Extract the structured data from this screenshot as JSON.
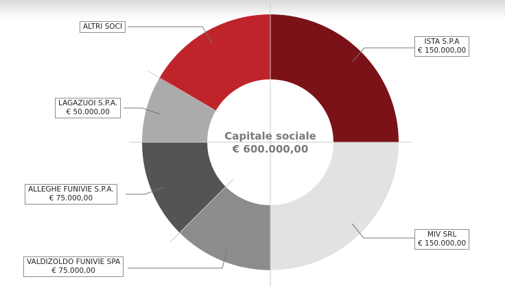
{
  "chart_data": {
    "type": "pie",
    "donut": true,
    "center_label": [
      "Capitale sociale",
      "€ 600.000,00"
    ],
    "slices": [
      {
        "name": "ISTA S.P.A",
        "value_label": "€ 150.000,00",
        "value": 150000,
        "color": "#7a1218"
      },
      {
        "name": "MIV SRL",
        "value_label": "€ 150.000,00",
        "value": 150000,
        "color": "#e2e2e2"
      },
      {
        "name": "VALDIZOLDO FUNIVIE SPA",
        "value_label": "€ 75.000,00",
        "value": 75000,
        "color": "#8c8c8c"
      },
      {
        "name": "ALLEGHE FUNIVIE S.P.A.",
        "value_label": "€ 75.000,00",
        "value": 75000,
        "color": "#555354"
      },
      {
        "name": "LAGAZUOI S.P.A.",
        "value_label": "€ 50.000,00",
        "value": 50000,
        "color": "#ababab"
      },
      {
        "name": "ALTRI SOCI",
        "value_label": "",
        "value": 100000,
        "color": "#c0242b"
      }
    ]
  }
}
